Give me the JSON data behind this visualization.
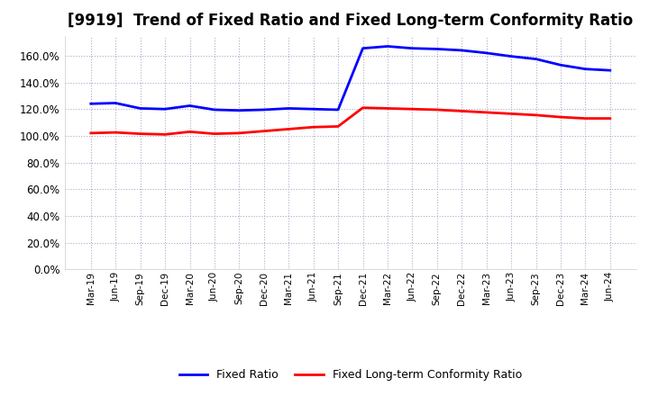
{
  "title": "[9919]  Trend of Fixed Ratio and Fixed Long-term Conformity Ratio",
  "x_labels": [
    "Mar-19",
    "Jun-19",
    "Sep-19",
    "Dec-19",
    "Mar-20",
    "Jun-20",
    "Sep-20",
    "Dec-20",
    "Mar-21",
    "Jun-21",
    "Sep-21",
    "Dec-21",
    "Mar-22",
    "Jun-22",
    "Sep-22",
    "Dec-22",
    "Mar-23",
    "Jun-23",
    "Sep-23",
    "Dec-23",
    "Mar-24",
    "Jun-24"
  ],
  "fixed_ratio": [
    124.0,
    124.5,
    120.5,
    120.0,
    122.5,
    119.5,
    119.0,
    119.5,
    120.5,
    120.0,
    119.5,
    165.5,
    167.0,
    165.5,
    165.0,
    164.0,
    162.0,
    159.5,
    157.5,
    153.0,
    150.0,
    149.0
  ],
  "fixed_lt_ratio": [
    102.0,
    102.5,
    101.5,
    101.0,
    103.0,
    101.5,
    102.0,
    103.5,
    105.0,
    106.5,
    107.0,
    121.0,
    120.5,
    120.0,
    119.5,
    118.5,
    117.5,
    116.5,
    115.5,
    114.0,
    113.0,
    113.0
  ],
  "fixed_ratio_color": "#0000FF",
  "fixed_lt_ratio_color": "#FF0000",
  "ylim": [
    0,
    175
  ],
  "yticks": [
    0,
    20,
    40,
    60,
    80,
    100,
    120,
    140,
    160
  ],
  "background_color": "#FFFFFF",
  "grid_color": "#AAAACC",
  "title_fontsize": 12,
  "legend_fixed_ratio": "Fixed Ratio",
  "legend_fixed_lt_ratio": "Fixed Long-term Conformity Ratio"
}
